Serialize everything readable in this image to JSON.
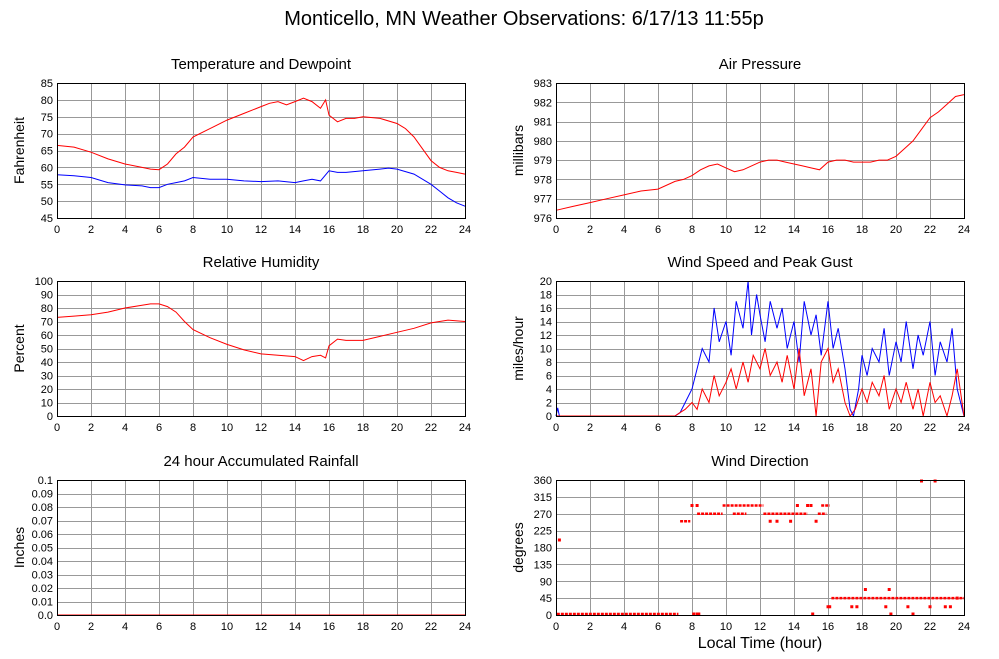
{
  "page": {
    "title": "Monticello, MN Weather Observations: 6/17/13 11:55p",
    "xlabel": "Local Time (hour)"
  },
  "colors": {
    "red": "#ff0000",
    "blue": "#0000ff",
    "grid": "#999999"
  },
  "chart_data": [
    {
      "id": "temp",
      "type": "line",
      "title": "Temperature and Dewpoint",
      "ylabel": "Fahrenheit",
      "xlim": [
        0,
        24
      ],
      "ylim": [
        45,
        85
      ],
      "xticks": [
        0,
        2,
        4,
        6,
        8,
        10,
        12,
        14,
        16,
        18,
        20,
        22,
        24
      ],
      "yticks": [
        45,
        50,
        55,
        60,
        65,
        70,
        75,
        80,
        85
      ],
      "grid": true,
      "series": [
        {
          "color": "#ff0000",
          "x": [
            0,
            1,
            2,
            3,
            4,
            5,
            5.5,
            6,
            6.5,
            7,
            7.5,
            8,
            9,
            10,
            11,
            12,
            12.5,
            13,
            13.5,
            14,
            14.5,
            15,
            15.5,
            15.8,
            16,
            16.5,
            17,
            17.5,
            18,
            19,
            20,
            20.5,
            21,
            21.5,
            22,
            22.5,
            23,
            23.5,
            24
          ],
          "y": [
            66.5,
            66,
            64.5,
            62.5,
            61,
            60,
            59.5,
            59.3,
            61,
            64,
            66,
            69,
            71.5,
            74,
            76,
            78,
            79,
            79.5,
            78.5,
            79.5,
            80.5,
            79.5,
            77.5,
            80,
            75.5,
            73.5,
            74.5,
            74.5,
            75,
            74.5,
            73,
            71.5,
            69,
            65.5,
            62,
            60,
            59,
            58.5,
            58
          ]
        },
        {
          "color": "#0000ff",
          "x": [
            0,
            1,
            2,
            3,
            4,
            5,
            5.5,
            6,
            6.5,
            7,
            7.5,
            8,
            9,
            10,
            11,
            12,
            13,
            14,
            14.5,
            15,
            15.5,
            16,
            16.5,
            17,
            18,
            19,
            19.5,
            20,
            21,
            22,
            22.5,
            23,
            23.5,
            24
          ],
          "y": [
            57.8,
            57.5,
            57,
            55.5,
            54.8,
            54.5,
            54,
            54,
            55,
            55.5,
            56,
            57,
            56.5,
            56.5,
            56,
            55.8,
            56,
            55.5,
            56,
            56.5,
            56,
            59,
            58.5,
            58.5,
            59,
            59.5,
            59.8,
            59.5,
            58,
            55,
            53,
            51,
            49.5,
            48.5
          ]
        }
      ]
    },
    {
      "id": "pressure",
      "type": "line",
      "title": "Air Pressure",
      "ylabel": "millibars",
      "xlim": [
        0,
        24
      ],
      "ylim": [
        976,
        983
      ],
      "xticks": [
        0,
        2,
        4,
        6,
        8,
        10,
        12,
        14,
        16,
        18,
        20,
        22,
        24
      ],
      "yticks": [
        976,
        977,
        978,
        979,
        980,
        981,
        982,
        983
      ],
      "grid": true,
      "series": [
        {
          "color": "#ff0000",
          "x": [
            0,
            1,
            2,
            3,
            4,
            5,
            6,
            7,
            7.5,
            8,
            8.5,
            9,
            9.5,
            10,
            10.5,
            11,
            11.5,
            12,
            12.5,
            13,
            13.5,
            14,
            14.5,
            15,
            15.5,
            16,
            16.5,
            17,
            17.5,
            18,
            18.5,
            19,
            19.5,
            20,
            20.5,
            21,
            21.5,
            22,
            22.5,
            23,
            23.5,
            24
          ],
          "y": [
            976.4,
            976.6,
            976.8,
            977,
            977.2,
            977.4,
            977.5,
            977.9,
            978,
            978.2,
            978.5,
            978.7,
            978.8,
            978.6,
            978.4,
            978.5,
            978.7,
            978.9,
            979,
            979,
            978.9,
            978.8,
            978.7,
            978.6,
            978.5,
            978.9,
            979,
            979,
            978.9,
            978.9,
            978.9,
            979,
            979,
            979.2,
            979.6,
            980,
            980.6,
            981.2,
            981.5,
            981.9,
            982.3,
            982.4
          ]
        }
      ]
    },
    {
      "id": "humidity",
      "type": "line",
      "title": "Relative Humidity",
      "ylabel": "Percent",
      "xlim": [
        0,
        24
      ],
      "ylim": [
        0,
        100
      ],
      "xticks": [
        0,
        2,
        4,
        6,
        8,
        10,
        12,
        14,
        16,
        18,
        20,
        22,
        24
      ],
      "yticks": [
        0,
        10,
        20,
        30,
        40,
        50,
        60,
        70,
        80,
        90,
        100
      ],
      "grid": true,
      "series": [
        {
          "color": "#ff0000",
          "x": [
            0,
            1,
            2,
            3,
            4,
            5,
            5.5,
            6,
            6.5,
            7,
            7.5,
            8,
            9,
            10,
            11,
            12,
            13,
            14,
            14.5,
            15,
            15.5,
            15.8,
            16,
            16.5,
            17,
            18,
            19,
            20,
            21,
            22,
            23,
            24
          ],
          "y": [
            73,
            74,
            75,
            77,
            80,
            82,
            83,
            83,
            81,
            77,
            70,
            64,
            58,
            53,
            49,
            46,
            45,
            44,
            41,
            44,
            45,
            43,
            52,
            57,
            56,
            56,
            59,
            62,
            65,
            69,
            71,
            70
          ]
        }
      ]
    },
    {
      "id": "wind",
      "type": "line",
      "title": "Wind Speed and Peak Gust",
      "ylabel": "miles/hour",
      "xlim": [
        0,
        24
      ],
      "ylim": [
        0,
        20
      ],
      "xticks": [
        0,
        2,
        4,
        6,
        8,
        10,
        12,
        14,
        16,
        18,
        20,
        22,
        24
      ],
      "yticks": [
        0,
        2,
        4,
        6,
        8,
        10,
        12,
        14,
        16,
        18,
        20
      ],
      "grid": true,
      "series": [
        {
          "color": "#0000ff",
          "x": [
            0,
            0.1,
            0.2,
            0.3,
            7,
            7.3,
            7.6,
            8,
            8.3,
            8.6,
            9,
            9.3,
            9.6,
            10,
            10.3,
            10.6,
            11,
            11.3,
            11.5,
            11.8,
            12,
            12.3,
            12.6,
            13,
            13.3,
            13.6,
            14,
            14.3,
            14.6,
            15,
            15.3,
            15.6,
            16,
            16.3,
            16.6,
            17,
            17.3,
            17.5,
            17.8,
            18,
            18.3,
            18.6,
            19,
            19.3,
            19.6,
            20,
            20.3,
            20.6,
            21,
            21.3,
            21.6,
            22,
            22.3,
            22.6,
            23,
            23.3,
            23.6,
            24
          ],
          "y": [
            0,
            1.2,
            0,
            0,
            0,
            0.5,
            2,
            4,
            7,
            10,
            8,
            16,
            11,
            14,
            9,
            17,
            13,
            20,
            12,
            18,
            15,
            11,
            17,
            13,
            16,
            10,
            14,
            8,
            17,
            12,
            15,
            9,
            17,
            10,
            13,
            7,
            1,
            0,
            4,
            9,
            6,
            10,
            8,
            13,
            6,
            11,
            8,
            14,
            7,
            12,
            9,
            14,
            6,
            11,
            8,
            13,
            4,
            0
          ]
        },
        {
          "color": "#ff0000",
          "x": [
            0,
            7,
            7.3,
            7.6,
            8,
            8.3,
            8.6,
            9,
            9.3,
            9.6,
            10,
            10.3,
            10.6,
            11,
            11.3,
            11.6,
            12,
            12.3,
            12.6,
            13,
            13.3,
            13.6,
            14,
            14.3,
            14.6,
            15,
            15.3,
            15.6,
            16,
            16.3,
            16.6,
            17,
            17.3,
            17.6,
            18,
            18.3,
            18.6,
            19,
            19.3,
            19.6,
            20,
            20.3,
            20.6,
            21,
            21.3,
            21.6,
            22,
            22.3,
            22.6,
            23,
            23.3,
            23.6,
            24
          ],
          "y": [
            0,
            0,
            0.5,
            1,
            2,
            1,
            4,
            2,
            6,
            3,
            5,
            7,
            4,
            8,
            5,
            9,
            7,
            10,
            6,
            8,
            5,
            9,
            4,
            10,
            3,
            7,
            0,
            8,
            10,
            5,
            7,
            2,
            0,
            1,
            4,
            2,
            5,
            3,
            6,
            1,
            4,
            2,
            5,
            1,
            4,
            0,
            5,
            2,
            3,
            0,
            3,
            7,
            0
          ]
        }
      ]
    },
    {
      "id": "rain",
      "type": "line",
      "title": "24 hour Accumulated Rainfall",
      "ylabel": "Inches",
      "xlim": [
        0,
        24
      ],
      "ylim": [
        0,
        0.1
      ],
      "xticks": [
        0,
        2,
        4,
        6,
        8,
        10,
        12,
        14,
        16,
        18,
        20,
        22,
        24
      ],
      "yticks": [
        "0.0",
        "0.01",
        "0.02",
        "0.03",
        "0.04",
        "0.05",
        "0.06",
        "0.07",
        "0.08",
        "0.09",
        "0.1"
      ],
      "grid": true,
      "series": [
        {
          "color": "#ff0000",
          "x": [
            0,
            24
          ],
          "y": [
            0,
            0
          ]
        }
      ]
    },
    {
      "id": "direction",
      "type": "scatter",
      "title": "Wind Direction",
      "ylabel": "degrees",
      "xlim": [
        0,
        24
      ],
      "ylim": [
        0,
        360
      ],
      "xticks": [
        0,
        2,
        4,
        6,
        8,
        10,
        12,
        14,
        16,
        18,
        20,
        22,
        24
      ],
      "yticks": [
        0,
        45,
        90,
        135,
        180,
        225,
        270,
        315,
        360
      ],
      "grid": true,
      "series": [
        {
          "color": "#ff0000",
          "runs": [
            {
              "x0": 0.05,
              "x1": 7.2,
              "y": 0
            },
            {
              "x0": 7.3,
              "x1": 7.9,
              "y": 250
            },
            {
              "x0": 8.3,
              "x1": 9.8,
              "y": 270
            },
            {
              "x0": 9.8,
              "x1": 12.2,
              "y": 292
            },
            {
              "x0": 10.4,
              "x1": 11.2,
              "y": 270
            },
            {
              "x0": 12.2,
              "x1": 14.8,
              "y": 270
            },
            {
              "x0": 15.4,
              "x1": 15.9,
              "y": 270
            },
            {
              "x0": 15.6,
              "x1": 16.1,
              "y": 292
            },
            {
              "x0": 16.2,
              "x1": 24,
              "y": 45
            }
          ],
          "x": [
            0.2,
            8.0,
            8.3,
            8.3,
            8.1,
            8.4,
            12.6,
            13.0,
            13.8,
            14.2,
            14.8,
            15.0,
            15.3,
            15.1,
            16.1,
            16.0,
            17.4,
            17.7,
            18.2,
            19.6,
            19.4,
            19.7,
            20.7,
            21.0,
            21.5,
            22.3,
            22.0,
            22.9,
            23.2,
            23.6
          ],
          "y": [
            200,
            292,
            292,
            0,
            0,
            0,
            250,
            250,
            250,
            292,
            292,
            292,
            250,
            0,
            22,
            22,
            22,
            22,
            68,
            68,
            22,
            0,
            22,
            0,
            360,
            360,
            22,
            22,
            22,
            45
          ]
        }
      ]
    }
  ]
}
